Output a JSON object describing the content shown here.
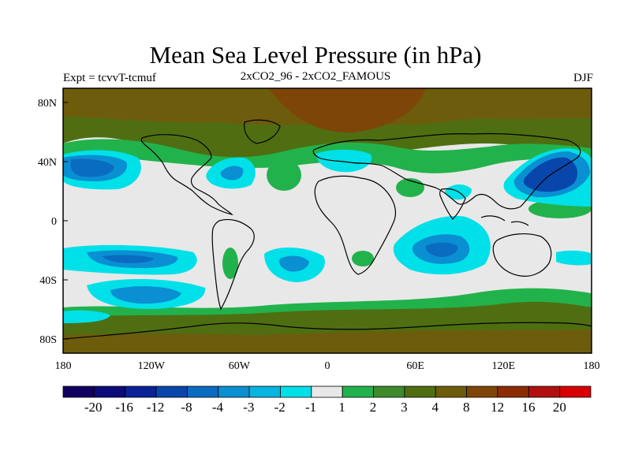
{
  "header": {
    "title": "Mean Sea Level Pressure (in hPa)",
    "left": "Expt = tcvvT-tcmuf",
    "center": "2xCO2_96 - 2xCO2_FAMOUS",
    "right": "DJF"
  },
  "axes": {
    "lat_ticks": [
      "80N",
      "40N",
      "0",
      "40S",
      "80S"
    ],
    "lon_ticks": [
      "180",
      "120W",
      "60W",
      "0",
      "60E",
      "120E",
      "180"
    ]
  },
  "colorbar": {
    "colors": [
      "#120060",
      "#0b0b7a",
      "#0a2296",
      "#0946ab",
      "#0a6cc0",
      "#0a8fd2",
      "#08b4e0",
      "#00e0e8",
      "#e8e8e8",
      "#22b24c",
      "#3f8a2c",
      "#4f6e12",
      "#6d5c0c",
      "#7e4508",
      "#8c2c04",
      "#b01010",
      "#d80000"
    ],
    "labels": [
      "-20",
      "-16",
      "-12",
      "-8",
      "-4",
      "-3",
      "-2",
      "-1",
      "1",
      "2",
      "3",
      "4",
      "8",
      "12",
      "16",
      "20"
    ]
  },
  "map_colors": {
    "background": "#e8e8e8",
    "neg1": "#00e0e8",
    "neg2": "#08b4e0",
    "neg3": "#0a8fd2",
    "neg4": "#0a6cc0",
    "neg5": "#0946ab",
    "pos2": "#22b24c",
    "pos3": "#3f8a2c",
    "pos4": "#4f6e12",
    "pos5": "#6d5c0c",
    "pos6": "#7e4508"
  }
}
